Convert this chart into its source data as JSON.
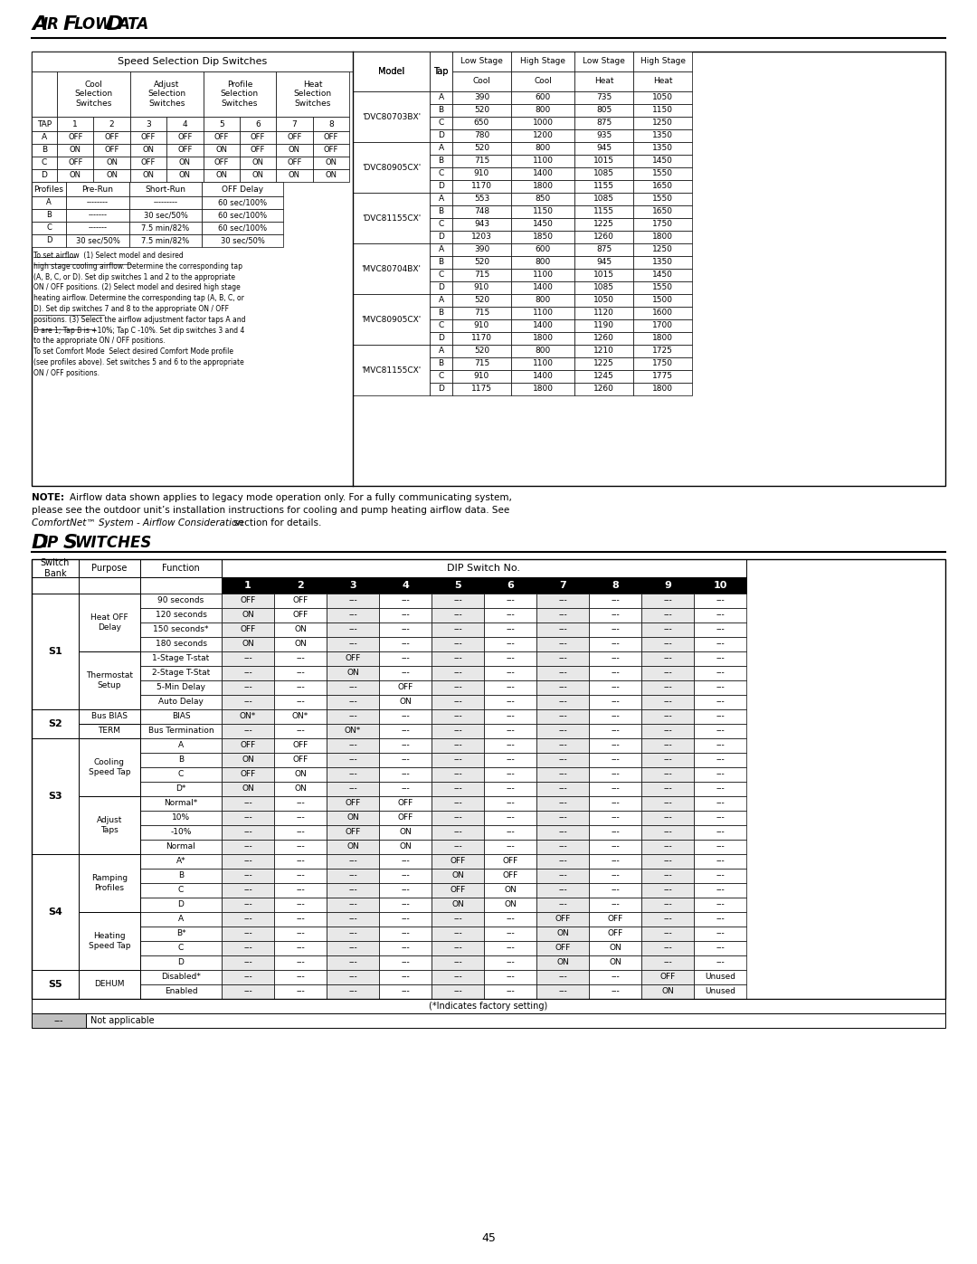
{
  "title_airflow": "Air Flow Data",
  "title_dip": "Dip Switches",
  "page_number": "45",
  "bg_color": "#ffffff",
  "speed_sel_title": "Speed Selection Dip Switches",
  "speed_headers": [
    "Cool\nSelection\nSwitches",
    "Adjust\nSelection\nSwitches",
    "Profile\nSelection\nSwitches",
    "Heat\nSelection\nSwitches"
  ],
  "tap_row": [
    "TAP",
    "1",
    "2",
    "3",
    "4",
    "5",
    "6",
    "7",
    "8"
  ],
  "tap_data": [
    [
      "A",
      "OFF",
      "OFF",
      "OFF",
      "OFF",
      "OFF",
      "OFF",
      "OFF",
      "OFF"
    ],
    [
      "B",
      "ON",
      "OFF",
      "ON",
      "OFF",
      "ON",
      "OFF",
      "ON",
      "OFF"
    ],
    [
      "C",
      "OFF",
      "ON",
      "OFF",
      "ON",
      "OFF",
      "ON",
      "OFF",
      "ON"
    ],
    [
      "D",
      "ON",
      "ON",
      "ON",
      "ON",
      "ON",
      "ON",
      "ON",
      "ON"
    ]
  ],
  "profiles_header": [
    "Profiles",
    "Pre-Run",
    "Short-Run",
    "OFF Delay"
  ],
  "profiles_data": [
    [
      "A",
      "--------",
      "---------",
      "60 sec/100%"
    ],
    [
      "B",
      "-------",
      "30 sec/50%",
      "60 sec/100%"
    ],
    [
      "C",
      "-------",
      "7.5 min/82%",
      "60 sec/100%"
    ],
    [
      "D",
      "30 sec/50%",
      "7.5 min/82%",
      "30 sec/50%"
    ]
  ],
  "airflow_note_text": "To set airflow  (1) Select model and desired\nhigh stage cooling airflow. Determine the corresponding tap\n(A, B, C, or D). Set dip switches 1 and 2 to the appropriate\nON / OFF positions. (2) Select model and desired high stage\nheating airflow. Determine the corresponding tap (A, B, C, or\nD). Set dip switches 7 and 8 to the appropriate ON / OFF\npositions. (3) Select the airflow adjustment factor taps A and\nD are 1; Tap B is +10%; Tap C -10%. Set dip switches 3 and 4\nto the appropriate ON / OFF positions.\nTo set Comfort Mode  Select desired Comfort Mode profile\n(see profiles above). Set switches 5 and 6 to the appropriate\nON / OFF positions.",
  "airflow_col_headers": [
    "Model",
    "Tap",
    "Low Stage\nCool",
    "High Stage\nCool",
    "Low Stage\nHeat",
    "High Stage\nHeat"
  ],
  "airflow_models": [
    {
      "model": "'DVC80703BX'",
      "rows": [
        [
          "A",
          "390",
          "600",
          "735",
          "1050"
        ],
        [
          "B",
          "520",
          "800",
          "805",
          "1150"
        ],
        [
          "C",
          "650",
          "1000",
          "875",
          "1250"
        ],
        [
          "D",
          "780",
          "1200",
          "935",
          "1350"
        ]
      ]
    },
    {
      "model": "'DVC80905CX'",
      "rows": [
        [
          "A",
          "520",
          "800",
          "945",
          "1350"
        ],
        [
          "B",
          "715",
          "1100",
          "1015",
          "1450"
        ],
        [
          "C",
          "910",
          "1400",
          "1085",
          "1550"
        ],
        [
          "D",
          "1170",
          "1800",
          "1155",
          "1650"
        ]
      ]
    },
    {
      "model": "'DVC81155CX'",
      "rows": [
        [
          "A",
          "553",
          "850",
          "1085",
          "1550"
        ],
        [
          "B",
          "748",
          "1150",
          "1155",
          "1650"
        ],
        [
          "C",
          "943",
          "1450",
          "1225",
          "1750"
        ],
        [
          "D",
          "1203",
          "1850",
          "1260",
          "1800"
        ]
      ]
    },
    {
      "model": "'MVC80704BX'",
      "rows": [
        [
          "A",
          "390",
          "600",
          "875",
          "1250"
        ],
        [
          "B",
          "520",
          "800",
          "945",
          "1350"
        ],
        [
          "C",
          "715",
          "1100",
          "1015",
          "1450"
        ],
        [
          "D",
          "910",
          "1400",
          "1085",
          "1550"
        ]
      ]
    },
    {
      "model": "'MVC80905CX'",
      "rows": [
        [
          "A",
          "520",
          "800",
          "1050",
          "1500"
        ],
        [
          "B",
          "715",
          "1100",
          "1120",
          "1600"
        ],
        [
          "C",
          "910",
          "1400",
          "1190",
          "1700"
        ],
        [
          "D",
          "1170",
          "1800",
          "1260",
          "1800"
        ]
      ]
    },
    {
      "model": "'MVC81155CX'",
      "rows": [
        [
          "A",
          "520",
          "800",
          "1210",
          "1725"
        ],
        [
          "B",
          "715",
          "1100",
          "1225",
          "1750"
        ],
        [
          "C",
          "910",
          "1400",
          "1245",
          "1775"
        ],
        [
          "D",
          "1175",
          "1800",
          "1260",
          "1800"
        ]
      ]
    }
  ],
  "note_text": "NOTE: Airflow data shown applies to legacy mode operation only. For a fully communicating system,\nplease see the outdoor unit’s installation instructions for cooling and pump heating airflow data. See\nComfortNet™ System - Airflow Consideration section for details.",
  "dip_col_headers": [
    "Switch\nBank",
    "Purpose",
    "Function",
    "1",
    "2",
    "3",
    "4",
    "5",
    "6",
    "7",
    "8",
    "9",
    "10"
  ],
  "dip_header2": "DIP Switch No.",
  "dip_rows": [
    [
      "S1",
      "Heat OFF\nDelay",
      "90 seconds",
      "OFF",
      "OFF",
      "---",
      "---",
      "---",
      "---",
      "---",
      "---",
      "---",
      "---"
    ],
    [
      "S1",
      "Heat OFF\nDelay",
      "120 seconds",
      "ON",
      "OFF",
      "---",
      "---",
      "---",
      "---",
      "---",
      "---",
      "---",
      "---"
    ],
    [
      "S1",
      "Heat OFF\nDelay",
      "150 seconds*",
      "OFF",
      "ON",
      "---",
      "---",
      "---",
      "---",
      "---",
      "---",
      "---",
      "---"
    ],
    [
      "S1",
      "Heat OFF\nDelay",
      "180 seconds",
      "ON",
      "ON",
      "---",
      "---",
      "---",
      "---",
      "---",
      "---",
      "---",
      "---"
    ],
    [
      "S1",
      "Thermostat\nSetup",
      "1-Stage T-stat",
      "---",
      "---",
      "OFF",
      "---",
      "---",
      "---",
      "---",
      "---",
      "---",
      "---"
    ],
    [
      "S1",
      "Thermostat\nSetup",
      "2-Stage T-Stat",
      "---",
      "---",
      "ON",
      "---",
      "---",
      "---",
      "---",
      "---",
      "---",
      "---"
    ],
    [
      "S1",
      "Thermostat\nSetup",
      "5-Min Delay",
      "---",
      "---",
      "---",
      "OFF",
      "---",
      "---",
      "---",
      "---",
      "---",
      "---"
    ],
    [
      "S1",
      "Thermostat\nSetup",
      "Auto Delay",
      "---",
      "---",
      "---",
      "ON",
      "---",
      "---",
      "---",
      "---",
      "---",
      "---"
    ],
    [
      "S2",
      "Bus BIAS",
      "BIAS",
      "ON*",
      "ON*",
      "---",
      "---",
      "---",
      "---",
      "---",
      "---",
      "---",
      "---"
    ],
    [
      "S2",
      "TERM",
      "Bus Termination",
      "---",
      "---",
      "ON*",
      "---",
      "---",
      "---",
      "---",
      "---",
      "---",
      "---"
    ],
    [
      "S3",
      "Cooling\nSpeed Tap",
      "A",
      "OFF",
      "OFF",
      "---",
      "---",
      "---",
      "---",
      "---",
      "---",
      "---",
      "---"
    ],
    [
      "S3",
      "Cooling\nSpeed Tap",
      "B",
      "ON",
      "OFF",
      "---",
      "---",
      "---",
      "---",
      "---",
      "---",
      "---",
      "---"
    ],
    [
      "S3",
      "Cooling\nSpeed Tap",
      "C",
      "OFF",
      "ON",
      "---",
      "---",
      "---",
      "---",
      "---",
      "---",
      "---",
      "---"
    ],
    [
      "S3",
      "Cooling\nSpeed Tap",
      "D*",
      "ON",
      "ON",
      "---",
      "---",
      "---",
      "---",
      "---",
      "---",
      "---",
      "---"
    ],
    [
      "S3",
      "Adjust\nTaps",
      "Normal*",
      "---",
      "---",
      "OFF",
      "OFF",
      "---",
      "---",
      "---",
      "---",
      "---",
      "---"
    ],
    [
      "S3",
      "Adjust\nTaps",
      "10%",
      "---",
      "---",
      "ON",
      "OFF",
      "---",
      "---",
      "---",
      "---",
      "---",
      "---"
    ],
    [
      "S3",
      "Adjust\nTaps",
      "-10%",
      "---",
      "---",
      "OFF",
      "ON",
      "---",
      "---",
      "---",
      "---",
      "---",
      "---"
    ],
    [
      "S3",
      "Adjust\nTaps",
      "Normal",
      "---",
      "---",
      "ON",
      "ON",
      "---",
      "---",
      "---",
      "---",
      "---",
      "---"
    ],
    [
      "S4",
      "Ramping\nProfiles",
      "A*",
      "---",
      "---",
      "---",
      "---",
      "OFF",
      "OFF",
      "---",
      "---",
      "---",
      "---"
    ],
    [
      "S4",
      "Ramping\nProfiles",
      "B",
      "---",
      "---",
      "---",
      "---",
      "ON",
      "OFF",
      "---",
      "---",
      "---",
      "---"
    ],
    [
      "S4",
      "Ramping\nProfiles",
      "C",
      "---",
      "---",
      "---",
      "---",
      "OFF",
      "ON",
      "---",
      "---",
      "---",
      "---"
    ],
    [
      "S4",
      "Ramping\nProfiles",
      "D",
      "---",
      "---",
      "---",
      "---",
      "ON",
      "ON",
      "---",
      "---",
      "---",
      "---"
    ],
    [
      "S4",
      "Heating\nSpeed Tap",
      "A",
      "---",
      "---",
      "---",
      "---",
      "---",
      "---",
      "OFF",
      "OFF",
      "---",
      "---"
    ],
    [
      "S4",
      "Heating\nSpeed Tap",
      "B*",
      "---",
      "---",
      "---",
      "---",
      "---",
      "---",
      "ON",
      "OFF",
      "---",
      "---"
    ],
    [
      "S4",
      "Heating\nSpeed Tap",
      "C",
      "---",
      "---",
      "---",
      "---",
      "---",
      "---",
      "OFF",
      "ON",
      "---",
      "---"
    ],
    [
      "S4",
      "Heating\nSpeed Tap",
      "D",
      "---",
      "---",
      "---",
      "---",
      "---",
      "---",
      "ON",
      "ON",
      "---",
      "---"
    ],
    [
      "S5",
      "DEHUM",
      "Disabled*",
      "---",
      "---",
      "---",
      "---",
      "---",
      "---",
      "---",
      "---",
      "OFF",
      "Unused"
    ],
    [
      "S5",
      "DEHUM",
      "Enabled",
      "---",
      "---",
      "---",
      "---",
      "---",
      "---",
      "---",
      "---",
      "ON",
      "Unused"
    ]
  ],
  "footnote": "(*Indicates factory setting)",
  "not_applicable": "Not applicable"
}
